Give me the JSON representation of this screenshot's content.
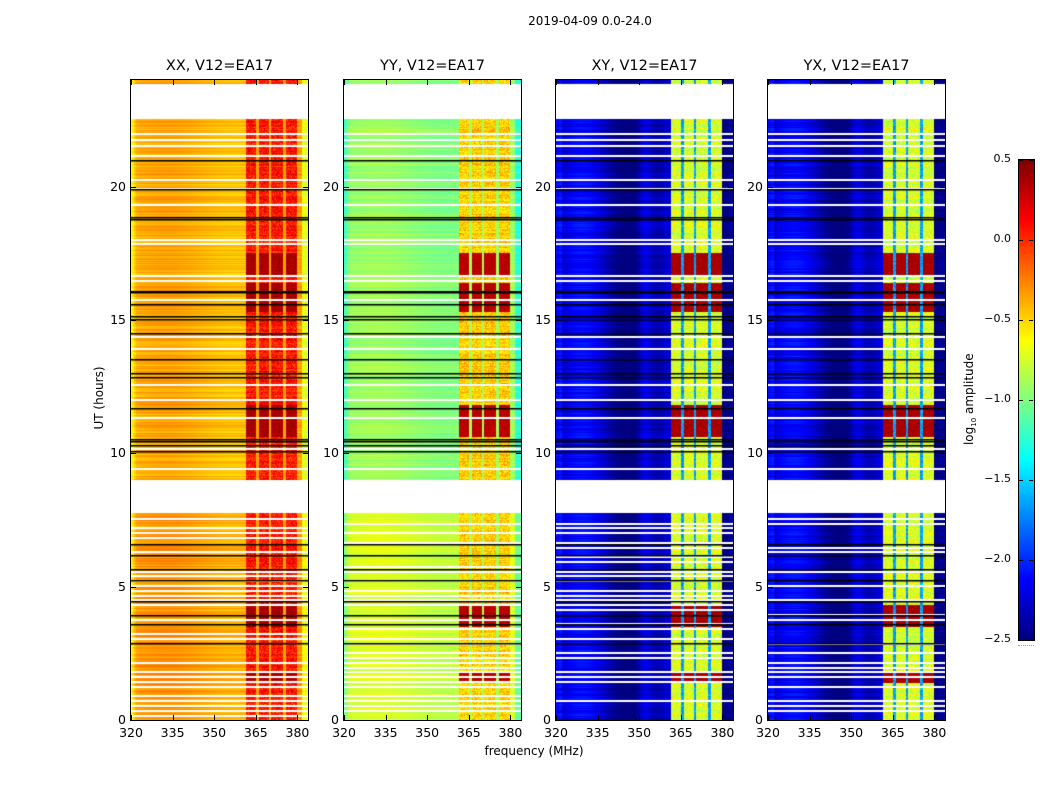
{
  "figure": {
    "suptitle": "2019-04-09 0.0-24.0"
  },
  "chart_data": {
    "type": "heatmap",
    "title": "2019-04-09 0.0-24.0",
    "xlabel": "frequency (MHz)",
    "ylabel": "UT (hours)",
    "xlim": [
      320,
      383.8
    ],
    "ylim": [
      0,
      24
    ],
    "xticks": [
      320,
      335,
      350,
      365,
      380
    ],
    "yticks": [
      0,
      5,
      10,
      15,
      20
    ],
    "colormap": "jet",
    "colorbar": {
      "label_prefix": "log",
      "label_sub": "10",
      "label_suffix": " amplitude",
      "range": [
        -2.5,
        0.5
      ],
      "ticks": [
        0.5,
        0.0,
        -0.5,
        -1.0,
        -1.5,
        -2.0,
        -2.5
      ],
      "tick_labels": [
        "0.5",
        "0.0",
        "−0.5",
        "−1.0",
        "−1.5",
        "−2.0",
        "−2.5"
      ]
    },
    "time_coverage": {
      "observed_segments_hours": [
        [
          0.0,
          7.75
        ],
        [
          8.95,
          22.55
        ],
        [
          23.85,
          24.0
        ]
      ],
      "blank_gap_hours": [
        [
          7.75,
          8.95
        ],
        [
          22.55,
          23.85
        ]
      ],
      "flagged_black_rows_hours": [
        10.1,
        10.3,
        10.45,
        10.55,
        11.7,
        12.85,
        13.0,
        13.55,
        14.5,
        15.05,
        15.15,
        15.6,
        16.05,
        16.1,
        18.8,
        18.85,
        19.9,
        21.0,
        2.9,
        3.6,
        3.95,
        4.45,
        5.25,
        5.65,
        6.2,
        6.6
      ],
      "blank_rows_hours": [
        9.0,
        9.45,
        10.2,
        11.35,
        12.05,
        12.6,
        13.95,
        14.4,
        15.8,
        16.5,
        16.7,
        17.9,
        18.05,
        19.35,
        19.95,
        20.3,
        21.2,
        21.55,
        21.8,
        22.0
      ]
    },
    "rfi_band_blocks_mhz": [
      [
        361.5,
        365.0
      ],
      [
        366.0,
        369.8
      ],
      [
        370.6,
        374.9
      ],
      [
        375.7,
        379.8
      ]
    ],
    "strong_interference_hours": [
      [
        16.6,
        17.5
      ],
      [
        15.3,
        16.4
      ],
      [
        10.6,
        11.8
      ],
      [
        3.5,
        4.3
      ],
      [
        1.4,
        1.8
      ]
    ],
    "series": [
      {
        "name": "XX, V12=EA17",
        "base_log_amp": -0.4,
        "band_log_amp": 0.0,
        "strong_log_amp": 0.45
      },
      {
        "name": "YY, V12=EA17",
        "base_log_amp": -0.95,
        "band_log_amp": -0.55,
        "strong_log_amp": 0.4
      },
      {
        "name": "XY, V12=EA17",
        "base_log_amp": -2.35,
        "band_log_amp": -0.8,
        "strong_log_amp": 0.45
      },
      {
        "name": "YX, V12=EA17",
        "base_log_amp": -2.35,
        "band_log_amp": -0.8,
        "strong_log_amp": 0.45
      }
    ]
  }
}
